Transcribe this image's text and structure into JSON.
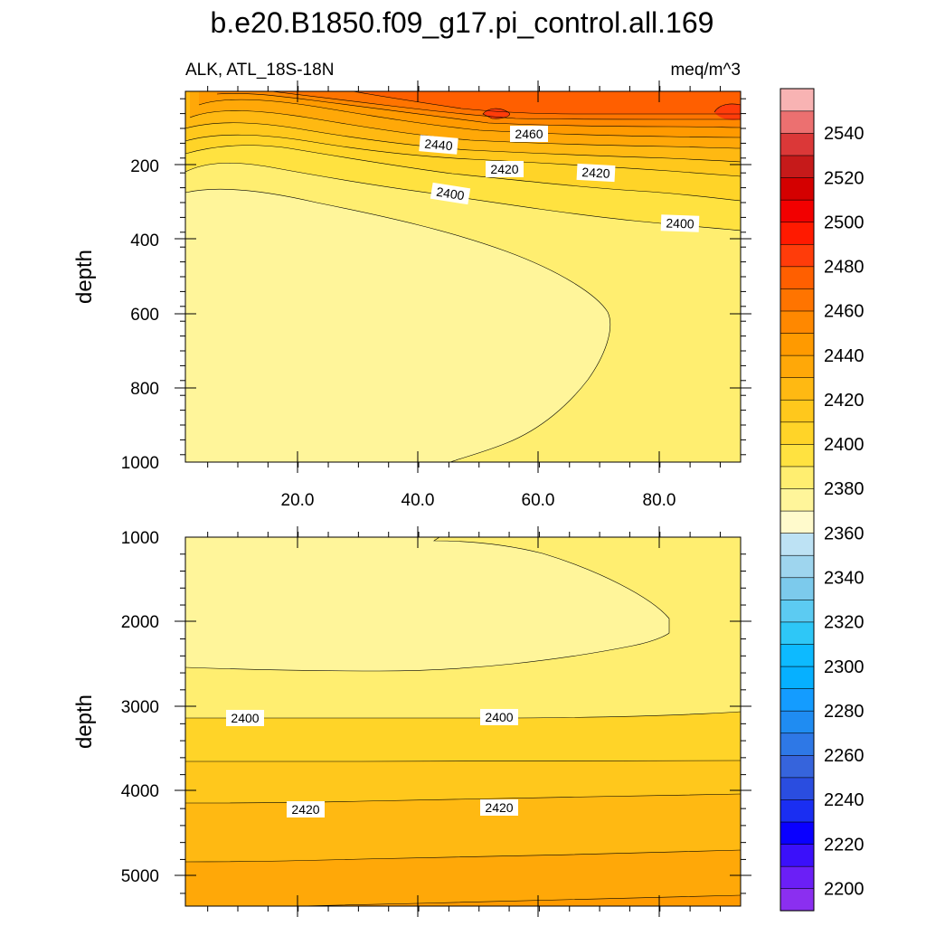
{
  "chart_data": {
    "type": "contour",
    "title": "b.e20.B1850.f09_g17.pi_control.all.169",
    "subtitle_left": "ALK, ATL_18S-18N",
    "subtitle_right": "meq/m^3",
    "colorbar": {
      "levels": [
        2200,
        2210,
        2220,
        2230,
        2240,
        2250,
        2260,
        2270,
        2280,
        2290,
        2300,
        2310,
        2320,
        2330,
        2340,
        2350,
        2360,
        2370,
        2380,
        2390,
        2400,
        2410,
        2420,
        2430,
        2440,
        2450,
        2460,
        2470,
        2480,
        2490,
        2500,
        2510,
        2520,
        2530,
        2540,
        2550
      ],
      "tick_labels": [
        "2200",
        "2220",
        "2240",
        "2260",
        "2280",
        "2300",
        "2320",
        "2340",
        "2360",
        "2380",
        "2400",
        "2420",
        "2440",
        "2460",
        "2480",
        "2500",
        "2520",
        "2540"
      ],
      "colors": [
        "#8b2ff0",
        "#6b1ff6",
        "#3b10fa",
        "#0a00ff",
        "#1a2ef2",
        "#2a4de0",
        "#3664dc",
        "#2e78e6",
        "#1f8cf2",
        "#149cff",
        "#06b0ff",
        "#0dbaff",
        "#2ec7f7",
        "#5ccbf2",
        "#7ccaec",
        "#9ed5ee",
        "#bde2f4",
        "#fffacc",
        "#fff59a",
        "#ffee70",
        "#ffe240",
        "#ffd428",
        "#ffc81c",
        "#ffb912",
        "#ffa808",
        "#ff9a00",
        "#ff8800",
        "#ff7400",
        "#ff5f00",
        "#ff3c0a",
        "#ff1a00",
        "#f20000",
        "#d40000",
        "#c61a1a",
        "#db3838",
        "#ec7070",
        "#f8b3b3"
      ]
    },
    "panels": [
      {
        "ylabel": "depth",
        "xticks": [
          "20.0",
          "40.0",
          "60.0",
          "80.0"
        ],
        "yticks": [
          "200",
          "400",
          "600",
          "800",
          "1000"
        ],
        "contour_labels": [
          "2460",
          "2440",
          "2420",
          "2420",
          "2400",
          "2400"
        ]
      },
      {
        "ylabel": "depth",
        "yticks": [
          "1000",
          "2000",
          "3000",
          "4000",
          "5000"
        ],
        "contour_labels": [
          "2400",
          "2400",
          "2420",
          "2420"
        ]
      }
    ]
  }
}
